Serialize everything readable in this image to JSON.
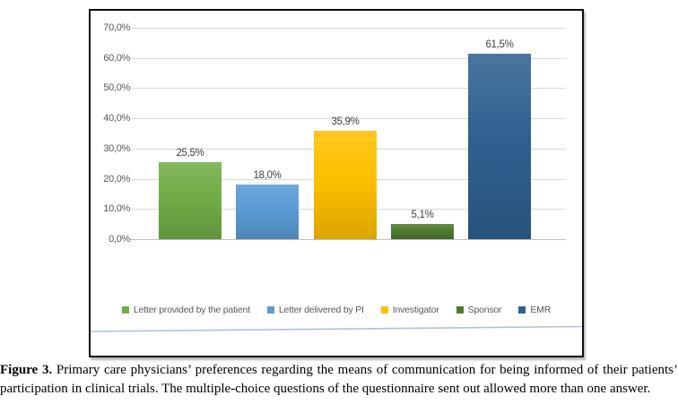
{
  "figure": {
    "caption": {
      "label": "Figure 3.",
      "text": " Primary care physicians’ preferences regarding the means of communication for being informed of their patients’ participation in clinical trials. The multiple-choice questions of the questionnaire sent out allowed more than one answer."
    }
  },
  "chart_data": {
    "type": "bar",
    "title": "",
    "xlabel": "",
    "ylabel": "",
    "categories": [
      "Letter provided by the patient",
      "Letter delivered by PI",
      "Investigator",
      "Sponsor",
      "EMR"
    ],
    "values": [
      25.5,
      18.0,
      35.9,
      5.1,
      61.5
    ],
    "bar_labels": [
      "25,5%",
      "18,0%",
      "35,9%",
      "5,1%",
      "61,5%"
    ],
    "series_colors": [
      "#70AD47",
      "#5B9BD5",
      "#FFC000",
      "#4E7A2E",
      "#2F6190"
    ],
    "y_axis": {
      "min": 0,
      "max": 70,
      "step": 10,
      "tick_labels": [
        "70,0%",
        "60,0%",
        "50,0%",
        "40,0%",
        "30,0%",
        "20,0%",
        "10,0%",
        "0,0%"
      ]
    },
    "grid": true,
    "legend_position": "bottom",
    "colors": {
      "tick_text": "#595959",
      "legend_text": "#595959",
      "data_label_text": "#404040",
      "gridline": "#D9D9D9",
      "baseline": "#BFBFBF",
      "frame_border": "#0D0D0D",
      "artifact_line": "#9FB8DC"
    }
  }
}
